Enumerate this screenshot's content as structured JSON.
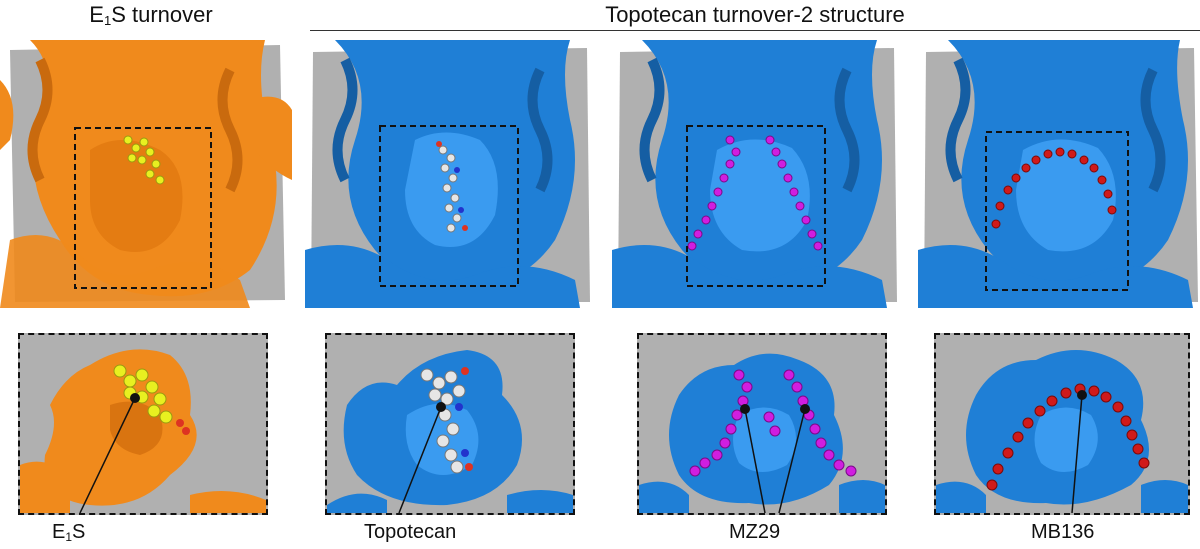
{
  "headers": {
    "left_pre": "E",
    "left_sub": "1",
    "left_post": "S turnover",
    "right": "Topotecan turnover-2 structure"
  },
  "labels": {
    "e1s_pre": "E",
    "e1s_sub": "1",
    "e1s_post": "S",
    "topotecan": "Topotecan",
    "mz29": "MZ29",
    "mb136": "MB136"
  },
  "colors": {
    "orange_surface": "#f08a1c",
    "blue_surface": "#1f7fd6",
    "cut_gray": "#aaaaaa",
    "e1s_ligand": "#e8f020",
    "topotecan_ligand": "#e6e6e6",
    "mz29_ligand": "#d01ee0",
    "mb136_ligand": "#d01a1a"
  }
}
